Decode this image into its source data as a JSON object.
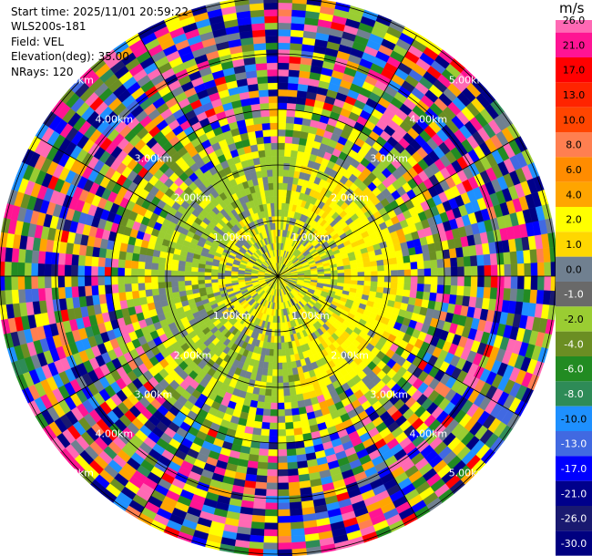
{
  "info": {
    "start_time": "Start time: 2025/11/01 20:59:22",
    "site": "WLS200s-181",
    "field": "Field: VEL",
    "elevation": "Elevation(deg): 35.00",
    "nrays": "NRays: 120"
  },
  "chart_data": {
    "type": "heatmap",
    "projection": "polar-ppi",
    "nrays": 120,
    "range_rings_km": [
      1,
      2,
      3,
      4,
      5
    ],
    "ring_labels": [
      "1.00km",
      "2.00km",
      "3.00km",
      "4.00km",
      "5.00km"
    ],
    "max_range_km": 5.0,
    "colorbar": {
      "unit": "m/s",
      "ticks": [
        "26.0",
        "21.0",
        "17.0",
        "13.0",
        "10.0",
        "8.0",
        "6.0",
        "4.0",
        "2.0",
        "1.0",
        "0.0",
        "-1.0",
        "-2.0",
        "-4.0",
        "-6.0",
        "-8.0",
        "-10.0",
        "-13.0",
        "-17.0",
        "-21.0",
        "-26.0",
        "-30.0"
      ],
      "colors": [
        "#ff69b4",
        "#ff1493",
        "#ff0000",
        "#ff2400",
        "#ff4500",
        "#ff7f50",
        "#ff8c00",
        "#ffa500",
        "#ffff00",
        "#ffd700",
        "#708090",
        "#696969",
        "#9acd32",
        "#6b8e23",
        "#228b22",
        "#2e8b57",
        "#1e90ff",
        "#4169e1",
        "#0000ff",
        "#00008b",
        "#191970",
        "#000080"
      ]
    }
  }
}
